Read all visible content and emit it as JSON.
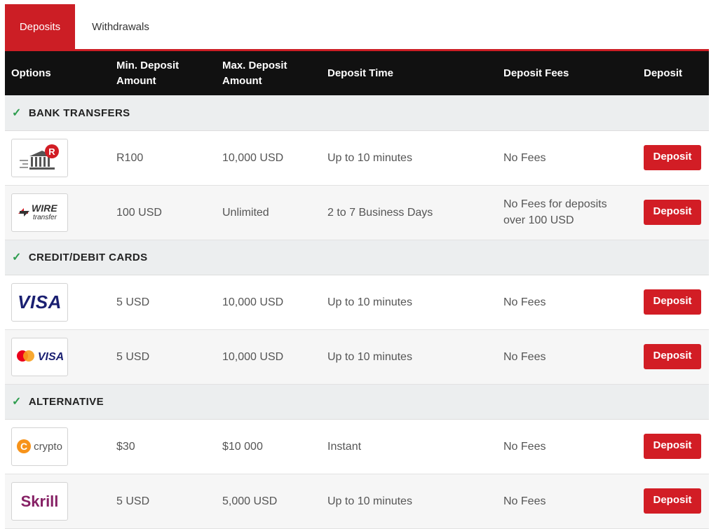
{
  "tabs": [
    "Deposits",
    "Withdrawals"
  ],
  "headers": [
    "Options",
    "Min. Deposit\nAmount",
    "Max. Deposit\nAmount",
    "Deposit Time",
    "Deposit Fees",
    "Deposit"
  ],
  "sections": {
    "bank": "BANK TRANSFERS",
    "cards": "CREDIT/DEBIT CARDS",
    "alt": "ALTERNATIVE"
  },
  "rows": [
    {
      "logo": "bank-transfer-r-logo",
      "min": "R100",
      "max": "10,000 USD",
      "time": "Up to 10 minutes",
      "fees": "No Fees",
      "button": "Deposit"
    },
    {
      "logo": "wire-transfer-logo",
      "logo_text_1": "WIRE",
      "logo_text_2": "transfer",
      "min": "100 USD",
      "max": "Unlimited",
      "time": "2 to 7 Business Days",
      "fees": "No Fees for deposits over 100 USD",
      "button": "Deposit"
    },
    {
      "logo": "visa-logo",
      "logo_text_1": "VISA",
      "min": "5 USD",
      "max": "10,000 USD",
      "time": "Up to 10 minutes",
      "fees": "No Fees",
      "button": "Deposit"
    },
    {
      "logo": "mastercard-visa-logo",
      "logo_text_1": "VISA",
      "min": "5 USD",
      "max": "10,000 USD",
      "time": "Up to 10 minutes",
      "fees": "No Fees",
      "button": "Deposit"
    },
    {
      "logo": "crypto-logo",
      "logo_text_1": "crypto",
      "min": "$30",
      "max": "$10 000",
      "time": "Instant",
      "fees": "No Fees",
      "button": "Deposit"
    },
    {
      "logo": "skrill-logo",
      "logo_text_1": "Skrill",
      "min": "5 USD",
      "max": "5,000 USD",
      "time": "Up to 10 minutes",
      "fees": "No Fees",
      "button": "Deposit"
    }
  ],
  "colors": {
    "accent": "#cc1e25",
    "header_bg": "#111111",
    "check": "#2e9d4f",
    "visa_blue": "#1a1f71",
    "skrill": "#862165",
    "crypto": "#f7931a"
  }
}
